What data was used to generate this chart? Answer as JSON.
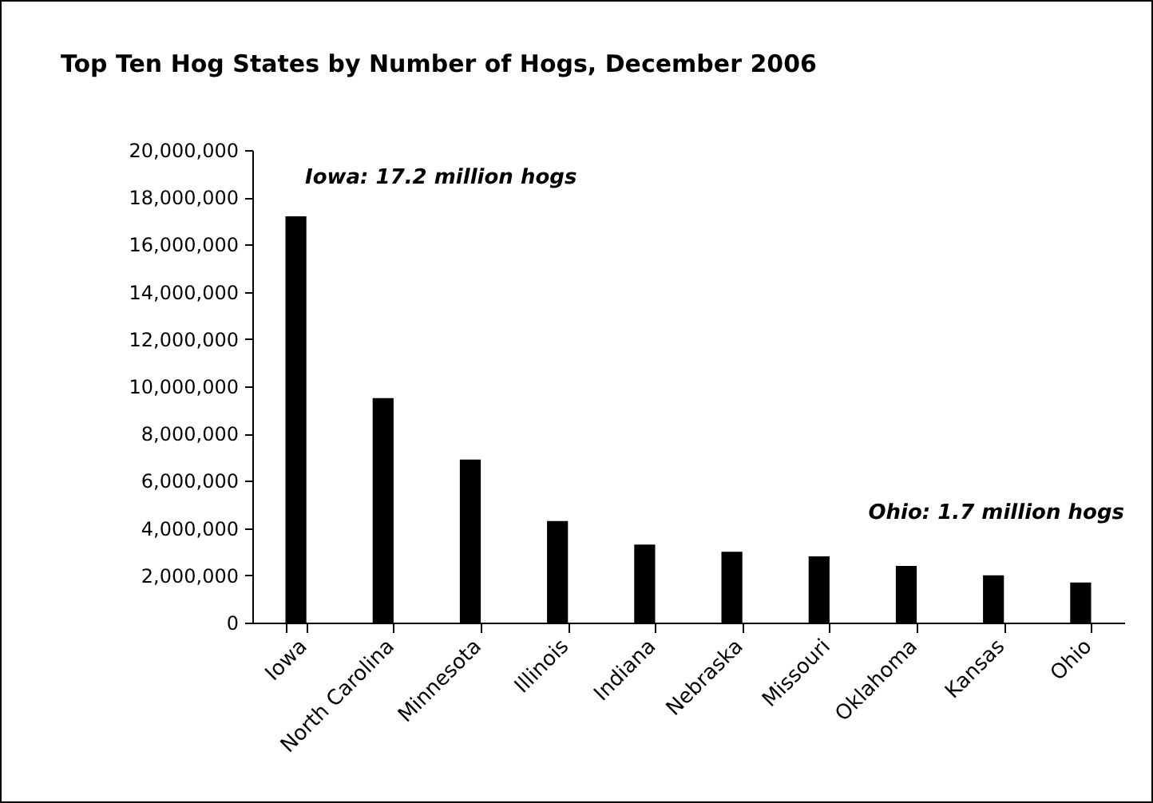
{
  "chart_data": {
    "type": "bar",
    "title": "Top Ten Hog States by Number of Hogs, December 2006",
    "categories": [
      "Iowa",
      "North Carolina",
      "Minnesota",
      "Illinois",
      "Indiana",
      "Nebraska",
      "Missouri",
      "Oklahoma",
      "Kansas",
      "Ohio"
    ],
    "values": [
      17200000,
      9500000,
      6900000,
      4300000,
      3300000,
      3000000,
      2800000,
      2400000,
      2000000,
      1700000
    ],
    "color": "#000000",
    "ylim": [
      0,
      20000000
    ],
    "yticks": [
      0,
      {
        "value": 2000000,
        "label": "2,000,000"
      },
      {
        "value": 4000000,
        "label": "4,000,000"
      },
      {
        "value": 6000000,
        "label": "6,000,000"
      },
      {
        "value": 8000000,
        "label": "8,000,000"
      },
      {
        "value": 10000000,
        "label": "10,000,000"
      },
      {
        "value": 12000000,
        "label": "12,000,000"
      },
      {
        "value": 14000000,
        "label": "14,000,000"
      },
      {
        "value": 16000000,
        "label": "16,000,000"
      },
      {
        "value": 18000000,
        "label": "18,000,000"
      },
      {
        "value": 20000000,
        "label": "20,000,000"
      }
    ],
    "annotations": [
      "Iowa: 17.2 million hogs",
      "Ohio: 1.7 million hogs"
    ]
  }
}
